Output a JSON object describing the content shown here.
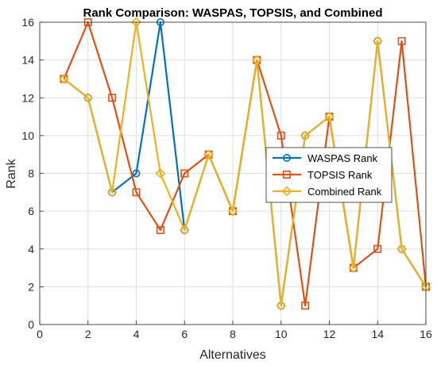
{
  "chart_data": {
    "type": "line",
    "title": "Rank Comparison: WASPAS, TOPSIS, and Combined",
    "xlabel": "Alternatives",
    "ylabel": "Rank",
    "xlim": [
      0,
      16
    ],
    "ylim": [
      0,
      16
    ],
    "xticks": [
      0,
      2,
      4,
      6,
      8,
      10,
      12,
      14,
      16
    ],
    "yticks": [
      0,
      2,
      4,
      6,
      8,
      10,
      12,
      14,
      16
    ],
    "grid": true,
    "legend_position": "center-right",
    "x": [
      1,
      2,
      3,
      4,
      5,
      6,
      7,
      8,
      9,
      10,
      11,
      12,
      13,
      14,
      15,
      16
    ],
    "series": [
      {
        "name": "WASPAS Rank",
        "color": "#0072BD",
        "marker": "circle",
        "values": [
          13,
          12,
          7,
          8,
          16,
          5,
          9,
          6,
          14,
          1,
          10,
          11,
          3,
          15,
          4,
          2
        ]
      },
      {
        "name": "TOPSIS Rank",
        "color": "#D95319",
        "marker": "square",
        "values": [
          13,
          16,
          12,
          7,
          5,
          8,
          9,
          6,
          14,
          10,
          1,
          11,
          3,
          4,
          15,
          2
        ]
      },
      {
        "name": "Combined Rank",
        "color": "#EDB120",
        "marker": "diamond",
        "values": [
          13,
          12,
          7,
          16,
          8,
          5,
          9,
          6,
          14,
          1,
          10,
          11,
          3,
          15,
          4,
          2
        ]
      }
    ]
  }
}
